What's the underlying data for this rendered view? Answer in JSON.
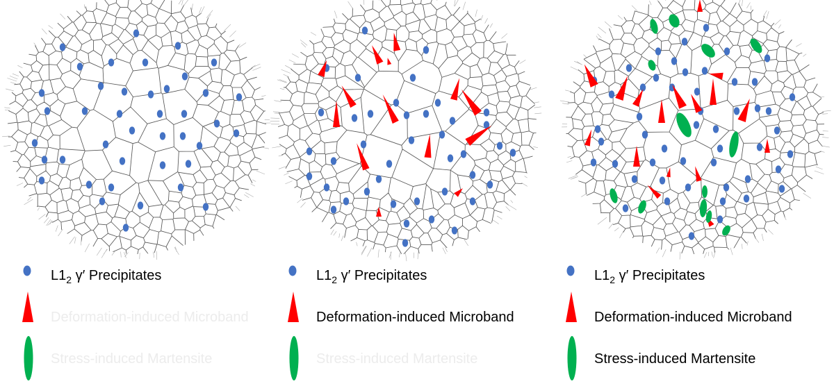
{
  "panels": [
    {
      "id": "annealed",
      "legend": [
        {
          "kind": "precipitate",
          "label_main": "L1",
          "label_sub": "2",
          "label_rest": " γ′ Precipitates",
          "active": true
        },
        {
          "kind": "microband",
          "label_main": "Deformation-induced Microband",
          "label_sub": "",
          "label_rest": "",
          "active": false
        },
        {
          "kind": "martensite",
          "label_main": "Stress-induced Martensite",
          "label_sub": "",
          "label_rest": "",
          "active": false
        }
      ]
    },
    {
      "id": "deformed-low",
      "legend": [
        {
          "kind": "precipitate",
          "label_main": "L1",
          "label_sub": "2",
          "label_rest": " γ′ Precipitates",
          "active": true
        },
        {
          "kind": "microband",
          "label_main": "Deformation-induced Microband",
          "label_sub": "",
          "label_rest": "",
          "active": true
        },
        {
          "kind": "martensite",
          "label_main": "Stress-induced Martensite",
          "label_sub": "",
          "label_rest": "",
          "active": false
        }
      ]
    },
    {
      "id": "deformed-high",
      "legend": [
        {
          "kind": "precipitate",
          "label_main": "L1",
          "label_sub": "2",
          "label_rest": " γ′ Precipitates",
          "active": true
        },
        {
          "kind": "microband",
          "label_main": "Deformation-induced Microband",
          "label_sub": "",
          "label_rest": "",
          "active": true
        },
        {
          "kind": "martensite",
          "label_main": "Stress-induced Martensite",
          "label_sub": "",
          "label_rest": "",
          "active": true
        }
      ]
    }
  ],
  "colors": {
    "precipitate": "#4472c4",
    "microband": "#ff0000",
    "martensite": "#00b050",
    "grain_boundary": "#555555",
    "text_active": "#000000",
    "text_inactive": "#ececec"
  }
}
